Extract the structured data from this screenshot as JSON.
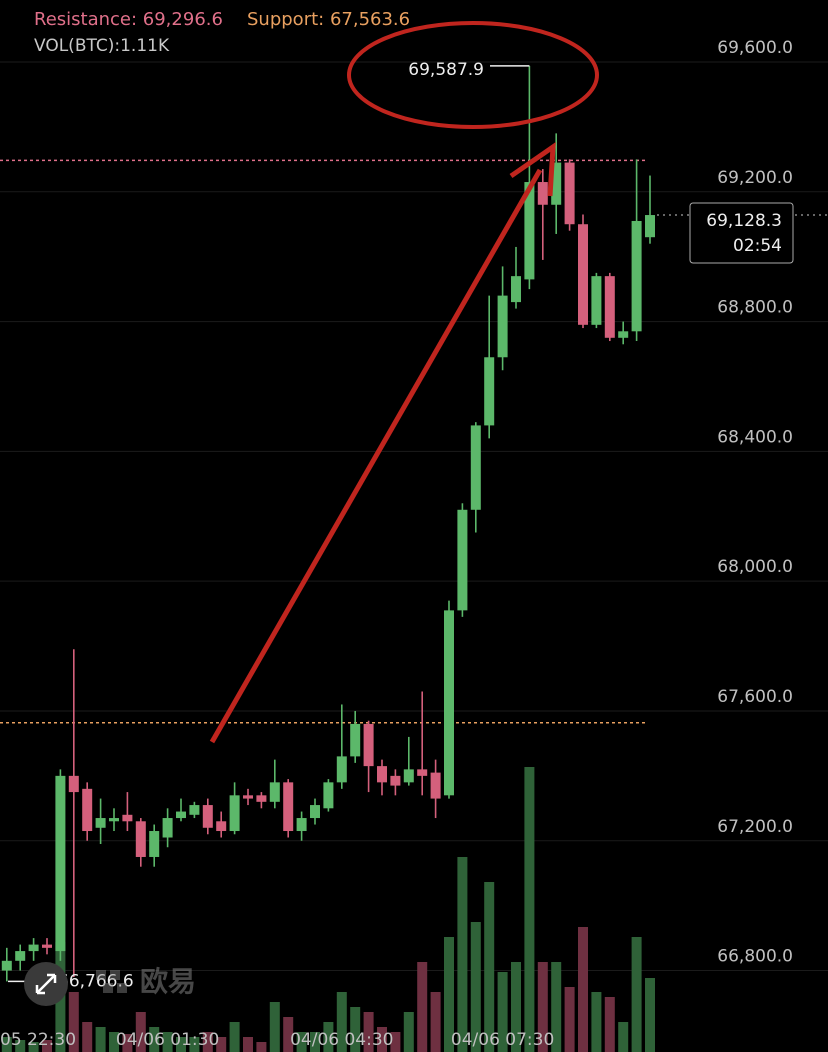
{
  "chart_data": {
    "type": "candlestick",
    "categories": [
      "05 22:30",
      null,
      null,
      null,
      null,
      null,
      null,
      null,
      null,
      null,
      null,
      null,
      "04/06 01:30",
      null,
      null,
      null,
      null,
      null,
      null,
      null,
      null,
      null,
      null,
      null,
      null,
      "04/06 04:30",
      null,
      null,
      null,
      null,
      null,
      null,
      null,
      null,
      null,
      null,
      null,
      "04/06 07:30",
      null,
      null,
      null,
      null,
      null,
      null,
      null,
      null,
      null,
      null,
      null
    ],
    "open": [
      66800,
      66830,
      66860,
      66880,
      66860,
      67400,
      67360,
      67240,
      67260,
      67280,
      67260,
      67150,
      67210,
      67270,
      67280,
      67310,
      67260,
      67230,
      67340,
      67340,
      67320,
      67380,
      67230,
      67270,
      67300,
      67380,
      67460,
      67560,
      67430,
      67400,
      67380,
      67420,
      67410,
      67340,
      67910,
      68220,
      68480,
      68690,
      68860,
      68930,
      69230,
      69160,
      69290,
      69100,
      68790,
      68940,
      68750,
      68770,
      69060
    ],
    "high": [
      66870,
      66880,
      66900,
      66900,
      67420,
      67790,
      67380,
      67330,
      67300,
      67350,
      67270,
      67250,
      67300,
      67330,
      67320,
      67330,
      67290,
      67380,
      67360,
      67350,
      67450,
      67390,
      67290,
      67330,
      67390,
      67620,
      67600,
      67570,
      67450,
      67420,
      67520,
      67660,
      67450,
      67940,
      68240,
      68490,
      68880,
      68970,
      69030,
      69587.9,
      69270,
      69380,
      69300,
      69130,
      68950,
      68950,
      68800,
      69300,
      69250
    ],
    "low": [
      66766.6,
      66800,
      66830,
      66850,
      66830,
      66780,
      67200,
      67190,
      67230,
      67230,
      67120,
      67120,
      67180,
      67260,
      67270,
      67220,
      67210,
      67220,
      67310,
      67300,
      67300,
      67210,
      67200,
      67250,
      67290,
      67360,
      67440,
      67350,
      67340,
      67340,
      67370,
      67340,
      67270,
      67330,
      67890,
      68150,
      68440,
      68650,
      68840,
      68900,
      68990,
      69070,
      69080,
      68780,
      68780,
      68740,
      68730,
      68740,
      69040
    ],
    "close": [
      66830,
      66860,
      66880,
      66870,
      67400,
      67350,
      67230,
      67270,
      67270,
      67260,
      67150,
      67230,
      67270,
      67290,
      67310,
      67240,
      67230,
      67340,
      67330,
      67320,
      67380,
      67230,
      67270,
      67310,
      67380,
      67460,
      67560,
      67430,
      67380,
      67370,
      67420,
      67400,
      67330,
      67910,
      68220,
      68480,
      68690,
      68880,
      68940,
      69230,
      69160,
      69290,
      69100,
      68790,
      68940,
      68750,
      68770,
      69110,
      69128.3
    ],
    "volume": [
      225,
      180,
      150,
      180,
      1650,
      900,
      450,
      375,
      300,
      270,
      600,
      375,
      300,
      225,
      225,
      300,
      225,
      450,
      225,
      150,
      750,
      525,
      300,
      300,
      450,
      900,
      675,
      600,
      375,
      300,
      600,
      1350,
      900,
      1725,
      2925,
      1950,
      2550,
      1200,
      1350,
      4275,
      1350,
      1350,
      975,
      1875,
      900,
      825,
      450,
      1725,
      1110
    ],
    "vlim": [
      0,
      4500
    ],
    "ylim": [
      66549,
      69791
    ],
    "yticks": [
      {
        "value": 69600,
        "label": "69,600.0"
      },
      {
        "value": 69200,
        "label": "69,200.0"
      },
      {
        "value": 68800,
        "label": "68,800.0"
      },
      {
        "value": 68400,
        "label": "68,400.0"
      },
      {
        "value": 68000,
        "label": "68,000.0"
      },
      {
        "value": 67600,
        "label": "67,600.0"
      },
      {
        "value": 67200,
        "label": "67,200.0"
      },
      {
        "value": 66800,
        "label": "66,800.0"
      }
    ],
    "up_color": "#5cb86a",
    "down_color": "#d4607c",
    "volume_up_color": "#2f6238",
    "volume_down_color": "#6e3041",
    "resistance": {
      "label": "Resistance: 69,296.6",
      "value": 69296.6,
      "color": "#e0708a"
    },
    "support": {
      "label": "Support: 67,563.6",
      "value": 67563.6,
      "color": "#e8a060"
    },
    "volume_label": "VOL(BTC):1.11K",
    "high_marker": {
      "label": "69,587.9",
      "value": 69587.9
    },
    "low_marker": {
      "label": "66,766.6",
      "value": 66766.6
    },
    "last_price": {
      "label": "69,128.3",
      "value": 69128.3
    },
    "countdown": "02:54",
    "watermark": "欧易"
  }
}
